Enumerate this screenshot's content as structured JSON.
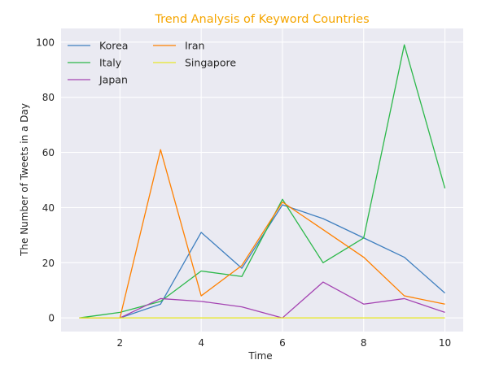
{
  "chart_data": {
    "type": "line",
    "title": "Trend Analysis of Keyword Countries",
    "xlabel": "Time",
    "ylabel": "The Number of Tweets in a Day",
    "x": [
      1,
      2,
      3,
      4,
      5,
      6,
      7,
      8,
      9,
      10
    ],
    "xlim": [
      0.55,
      10.45
    ],
    "ylim": [
      -4.95,
      104.95
    ],
    "xticks": [
      2,
      4,
      6,
      8,
      10
    ],
    "yticks": [
      0,
      20,
      40,
      60,
      80,
      100
    ],
    "grid": true,
    "legend": "top-left",
    "background_color": "#eaeaf2",
    "series": [
      {
        "name": "Korea",
        "color": "#3f7fbf",
        "values": [
          0,
          0,
          5,
          31,
          18,
          41,
          36,
          29,
          22,
          9
        ]
      },
      {
        "name": "Italy",
        "color": "#2cb84a",
        "values": [
          0,
          2,
          6,
          17,
          15,
          43,
          20,
          29,
          99,
          47
        ]
      },
      {
        "name": "Japan",
        "color": "#a443b2",
        "values": [
          0,
          0,
          7,
          6,
          4,
          0,
          13,
          5,
          7,
          2
        ]
      },
      {
        "name": "Iran",
        "color": "#ff8000",
        "values": [
          0,
          0,
          61,
          8,
          19,
          42,
          32,
          22,
          8,
          5
        ]
      },
      {
        "name": "Singapore",
        "color": "#e8e82a",
        "values": [
          0,
          0,
          0,
          0,
          0,
          0,
          0,
          0,
          0,
          0
        ]
      }
    ]
  }
}
